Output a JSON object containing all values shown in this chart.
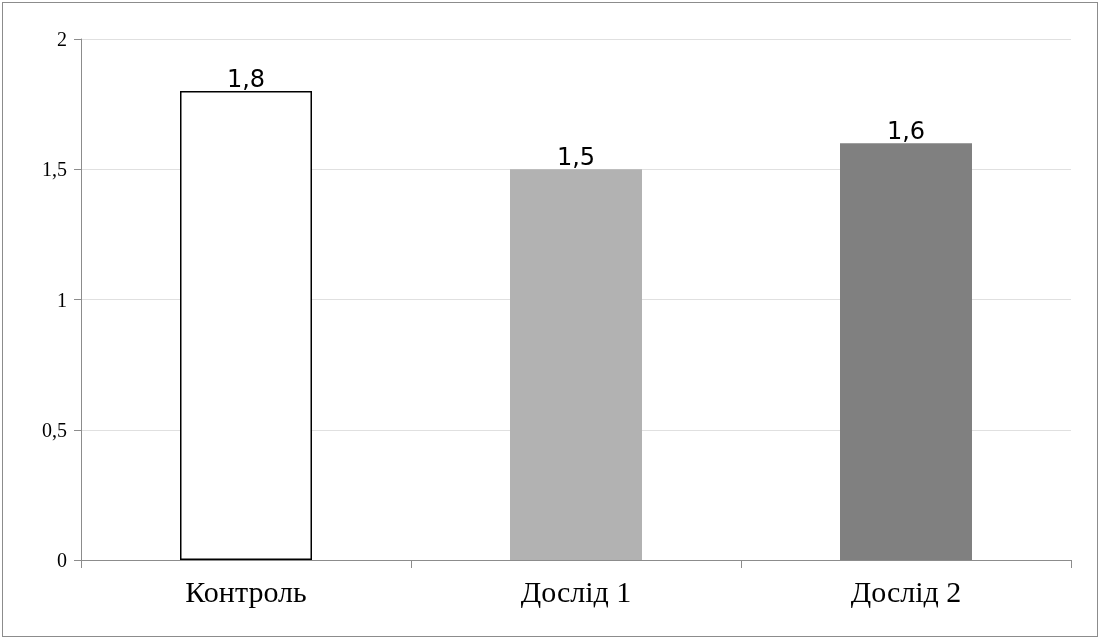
{
  "chart_data": {
    "type": "bar",
    "categories": [
      "Контроль",
      "Дослід 1",
      "Дослід 2"
    ],
    "values": [
      1.8,
      1.5,
      1.6
    ],
    "colors": [
      "#ffffff",
      "#b2b2b2",
      "#808080"
    ],
    "value_labels": [
      "1,8",
      "1,5",
      "1,6"
    ],
    "ylim": [
      0,
      2
    ],
    "yticks": [
      0,
      {
        "value": 0.5,
        "label": "0,5"
      },
      1,
      {
        "value": 1.5,
        "label": "1,5"
      },
      2
    ],
    "grid": "y"
  }
}
